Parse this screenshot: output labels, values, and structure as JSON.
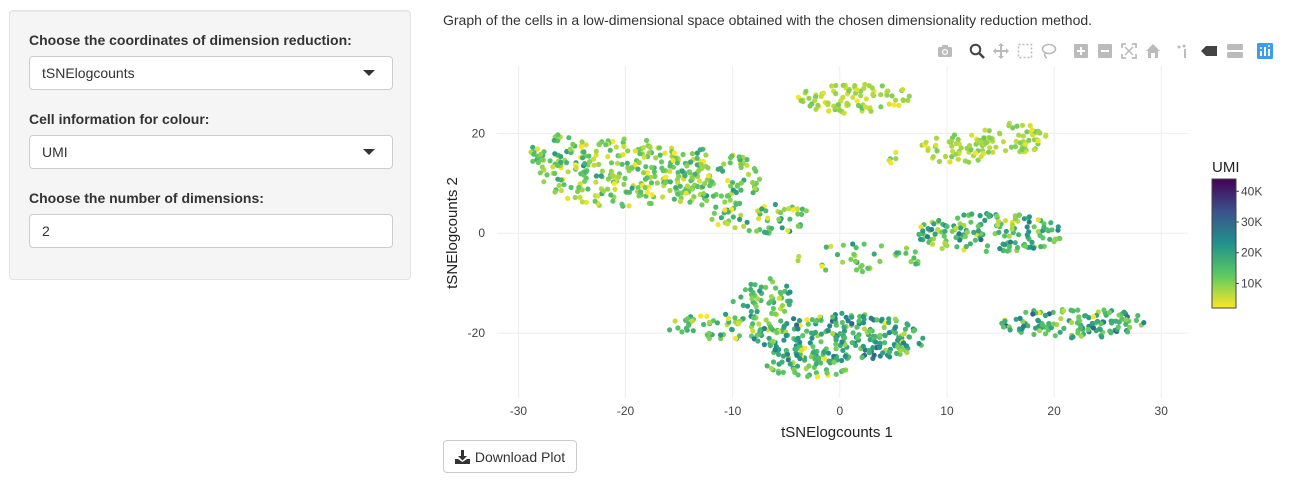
{
  "sidebar": {
    "coord_label": "Choose the coordinates of dimension reduction:",
    "coord_value": "tSNElogcounts",
    "colour_label": "Cell information for colour:",
    "colour_value": "UMI",
    "dims_label": "Choose the number of dimensions:",
    "dims_value": "2"
  },
  "main": {
    "description": "Graph of the cells in a low-dimensional space obtained with the chosen dimensionality reduction method.",
    "download_label": "Download Plot"
  },
  "modebar": {
    "icons": [
      "camera-icon",
      "zoom-icon",
      "pan-icon",
      "box-select-icon",
      "lasso-select-icon",
      "zoom-in-icon",
      "zoom-out-icon",
      "autoscale-icon",
      "reset-axes-icon",
      "spike-lines-icon",
      "hover-closest-icon",
      "hover-compare-icon",
      "plotly-logo-icon"
    ],
    "active_color": "#444444",
    "inactive_color": "#bbbbbb",
    "logo_color": "#3d9cf0"
  },
  "chart_data": {
    "type": "scatter",
    "title": "",
    "xlabel": "tSNElogcounts 1",
    "ylabel": "tSNElogcounts 2",
    "xlim": [
      -32,
      32.5
    ],
    "ylim": [
      -33,
      33.5
    ],
    "xticks": [
      -30,
      -20,
      -10,
      0,
      10,
      20,
      30
    ],
    "yticks": [
      -20,
      0,
      20
    ],
    "grid": true,
    "colorbar": {
      "title": "UMI",
      "range": [
        2000,
        44000
      ],
      "ticks": [
        10000,
        20000,
        30000,
        40000
      ],
      "tick_labels": [
        "10K",
        "20K",
        "30K",
        "40K"
      ],
      "colorscale": "viridis"
    },
    "clusters": [
      {
        "cx": 1.5,
        "cy": 27,
        "rx": 5.5,
        "ry": 3,
        "n": 90,
        "umi_mean": 7000,
        "umi_sd": 2500
      },
      {
        "cx": -20,
        "cy": 12,
        "rx": 8,
        "ry": 7,
        "n": 230,
        "umi_mean": 10000,
        "umi_sd": 4500
      },
      {
        "cx": -12,
        "cy": 11,
        "rx": 5,
        "ry": 6,
        "n": 110,
        "umi_mean": 11000,
        "umi_sd": 5000
      },
      {
        "cx": -26,
        "cy": 16,
        "rx": 3,
        "ry": 4,
        "n": 45,
        "umi_mean": 12000,
        "umi_sd": 5000
      },
      {
        "cx": -7,
        "cy": 3,
        "rx": 5,
        "ry": 3,
        "n": 60,
        "umi_mean": 13000,
        "umi_sd": 5500
      },
      {
        "cx": 11,
        "cy": 17,
        "rx": 3.5,
        "ry": 3,
        "n": 55,
        "umi_mean": 7000,
        "umi_sd": 2500
      },
      {
        "cx": 16,
        "cy": 19,
        "rx": 3.5,
        "ry": 3,
        "n": 60,
        "umi_mean": 7500,
        "umi_sd": 3000
      },
      {
        "cx": 14,
        "cy": 0,
        "rx": 7,
        "ry": 4,
        "n": 160,
        "umi_mean": 15000,
        "umi_sd": 6000
      },
      {
        "cx": 2,
        "cy": -5,
        "rx": 6,
        "ry": 3,
        "n": 40,
        "umi_mean": 12000,
        "umi_sd": 5000
      },
      {
        "cx": -7,
        "cy": -13,
        "rx": 3,
        "ry": 4,
        "n": 50,
        "umi_mean": 13000,
        "umi_sd": 5000
      },
      {
        "cx": -11,
        "cy": -19,
        "rx": 5,
        "ry": 3,
        "n": 60,
        "umi_mean": 13000,
        "umi_sd": 5000
      },
      {
        "cx": 0,
        "cy": -21,
        "rx": 8,
        "ry": 5,
        "n": 260,
        "umi_mean": 17000,
        "umi_sd": 6000
      },
      {
        "cx": -3,
        "cy": -27,
        "rx": 4,
        "ry": 2,
        "n": 35,
        "umi_mean": 14000,
        "umi_sd": 5000
      },
      {
        "cx": 22,
        "cy": -18,
        "rx": 7,
        "ry": 3,
        "n": 130,
        "umi_mean": 15000,
        "umi_sd": 6000
      },
      {
        "cx": 5,
        "cy": 15,
        "rx": 0.6,
        "ry": 1.5,
        "n": 5,
        "umi_mean": 9000,
        "umi_sd": 3000
      }
    ]
  }
}
